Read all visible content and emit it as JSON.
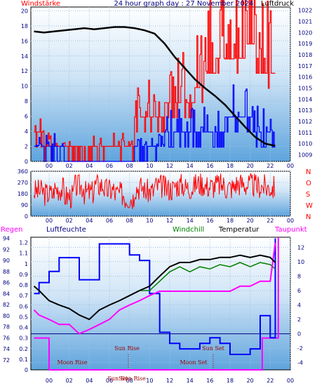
{
  "colors": {
    "panel_bg_top": "#ffffff",
    "panel_bg_bottom": "#5ea4dd",
    "wind": "#ff0000",
    "gust": "#0000ff",
    "pressure": "#000000",
    "direction": "#ff0000",
    "humidity": "#0000ff",
    "windchill": "#008000",
    "temperature": "#000000",
    "dewpoint": "#ff00ff",
    "rain": "#ff00ff",
    "tick_text_dark": "#000080",
    "label_red": "#ff0000"
  },
  "header": {
    "left": "Windstärke",
    "center": "24 hour graph day : 27 November 2024",
    "right": "Luftdruck"
  },
  "time_ticks": [
    "00",
    "02",
    "04",
    "06",
    "08",
    "10",
    "12",
    "14",
    "16",
    "18",
    "20",
    "22",
    "00"
  ],
  "chart_data": [
    {
      "type": "line",
      "title": "24 hour graph day : 27 November 2024",
      "x_ticks": [
        "00",
        "02",
        "04",
        "06",
        "08",
        "10",
        "12",
        "14",
        "16",
        "18",
        "20",
        "22",
        "00"
      ],
      "y_left_label": "Windstärke",
      "y_left_ticks": [
        0,
        2,
        4,
        6,
        8,
        10,
        12,
        14,
        16,
        18,
        20
      ],
      "y_left_range": [
        0,
        20.5
      ],
      "y_right_label": "Luftdruck",
      "y_right_ticks": [
        1009,
        1010,
        1011,
        1012,
        1013,
        1014,
        1015,
        1016,
        1017,
        1018,
        1019,
        1020,
        1021,
        1022
      ],
      "y_right_range": [
        1008.4,
        1022.3
      ],
      "grid": true,
      "series": [
        {
          "name": "Luftdruck",
          "axis": "right",
          "x": [
            -1.5,
            -0.5,
            0.5,
            1.5,
            2.5,
            3.5,
            4.5,
            5.5,
            6.5,
            7.5,
            8.5,
            9.5,
            10.5,
            11.5,
            12.5,
            13.5,
            14.5,
            15.5,
            16.5,
            17.5,
            18.5,
            19.5,
            20.5,
            21.5,
            22.5
          ],
          "y": [
            1020.1,
            1020.0,
            1020.1,
            1020.2,
            1020.3,
            1020.4,
            1020.3,
            1020.4,
            1020.5,
            1020.5,
            1020.4,
            1020.2,
            1019.9,
            1019.0,
            1017.8,
            1016.8,
            1015.8,
            1015.0,
            1014.3,
            1013.5,
            1012.5,
            1011.5,
            1010.6,
            1010.0,
            1009.8
          ]
        },
        {
          "name": "wind",
          "axis": "left",
          "x": [
            -1.5,
            -0.5,
            0.5,
            1.5,
            2.5,
            3.5,
            4.5,
            5.5,
            6.5,
            7.5,
            8.5,
            9.5,
            10.5,
            11.5,
            12.5,
            13.5,
            14.5,
            15.5,
            16.5,
            17.5,
            18.5,
            19.5,
            20.5,
            21.5,
            22.5
          ],
          "y": [
            3.9,
            2.0,
            2.0,
            2.0,
            2.0,
            2.0,
            2.0,
            2.0,
            2.0,
            2.0,
            5.9,
            5.9,
            5.9,
            7.8,
            7.8,
            7.8,
            9.8,
            11.7,
            13.7,
            15.6,
            13.7,
            15.6,
            13.7,
            11.7,
            9.8
          ]
        },
        {
          "name": "gust",
          "axis": "left",
          "x": [
            -1.5,
            -0.5,
            0.5,
            1.5,
            2.5,
            3.5,
            4.5,
            5.5,
            6.5,
            7.5,
            8.5,
            9.5,
            10.5,
            11.5,
            12.5,
            13.5,
            14.5,
            15.5,
            16.5,
            17.5,
            18.5,
            19.5,
            20.5,
            21.5,
            22.5
          ],
          "y": [
            2.0,
            2.0,
            2.0,
            0.0,
            0.0,
            0.0,
            0.0,
            0.0,
            0.0,
            0.0,
            2.0,
            2.0,
            2.0,
            3.9,
            3.9,
            3.9,
            3.9,
            3.9,
            3.9,
            5.9,
            5.9,
            5.9,
            3.9,
            3.9,
            3.9
          ]
        }
      ]
    },
    {
      "type": "line",
      "y_left_ticks": [
        0,
        90,
        180,
        270,
        360
      ],
      "y_left_range": [
        0,
        360
      ],
      "y_right_ticks": [
        "N",
        "W",
        "S",
        "O",
        "N"
      ],
      "grid": true,
      "series": [
        {
          "name": "direction",
          "x": [
            -1.5,
            -0.5,
            0.5,
            1.5,
            2.5,
            3.5,
            4.5,
            5.5,
            6.5,
            7.5,
            8.5,
            9.5,
            10.5,
            11.5,
            12.5,
            13.5,
            14.5,
            15.5,
            16.5,
            17.5,
            18.5,
            19.5,
            20.5,
            21.5,
            22.5
          ],
          "y": [
            200,
            180,
            220,
            160,
            240,
            190,
            250,
            210,
            180,
            150,
            230,
            200,
            240,
            220,
            250,
            230,
            260,
            240,
            250,
            230,
            260,
            250,
            240,
            230,
            250
          ]
        }
      ]
    },
    {
      "type": "line",
      "legend": [
        "Regen",
        "Luftfeuchte",
        "Windchill",
        "Temperatur",
        "Taupunkt"
      ],
      "y_left_ticks_rain": [
        0,
        0.1,
        0.2,
        0.3,
        0.4,
        0.5,
        0.6,
        0.7,
        0.8,
        0.9,
        1,
        1.1,
        1.2
      ],
      "y_left_ticks_humidity": [
        72,
        74,
        76,
        78,
        80,
        82,
        84,
        86,
        88,
        90,
        92,
        94
      ],
      "y_right_ticks": [
        -4,
        -2,
        0,
        2,
        4,
        6,
        8,
        10,
        12
      ],
      "y_right_range": [
        -5.0,
        13.4
      ],
      "humidity_range": [
        70.2,
        94.2
      ],
      "grid": true,
      "annotations": [
        "Moon Rise",
        "Sun Rise",
        "Sun Set",
        "Moon Set",
        "SunSet",
        "Sun Rise"
      ],
      "series": [
        {
          "name": "Luftfeuchte",
          "x": [
            -1.5,
            -1.0,
            0.0,
            1.0,
            2.0,
            3.0,
            4.0,
            5.0,
            6.0,
            7.0,
            8.0,
            9.0,
            10.0,
            11.0,
            12.0,
            13.0,
            14.0,
            15.0,
            16.0,
            17.0,
            18.0,
            19.0,
            20.0,
            21.0,
            22.0,
            22.5
          ],
          "y": [
            84,
            86,
            88,
            90.5,
            90.5,
            86.5,
            86.5,
            93.0,
            93.0,
            93.0,
            91.0,
            90.0,
            84.0,
            77.0,
            75.0,
            74.0,
            74.0,
            75.0,
            76.0,
            75.0,
            73.0,
            73.0,
            74.0,
            80.0,
            76.0,
            94.0
          ]
        },
        {
          "name": "Temperatur",
          "x": [
            -1.5,
            -1.0,
            0.0,
            1.0,
            2.0,
            3.0,
            4.0,
            5.0,
            6.0,
            7.0,
            8.0,
            9.0,
            10.0,
            11.0,
            12.0,
            13.0,
            14.0,
            15.0,
            16.0,
            17.0,
            18.0,
            19.0,
            20.0,
            21.0,
            22.0,
            22.5
          ],
          "y": [
            6.6,
            6.0,
            4.6,
            4.0,
            3.5,
            2.6,
            2.0,
            3.3,
            4.0,
            4.6,
            5.3,
            6.0,
            6.6,
            8.0,
            9.3,
            9.9,
            9.9,
            10.3,
            10.3,
            10.6,
            10.6,
            10.9,
            10.6,
            10.9,
            10.6,
            9.9
          ]
        },
        {
          "name": "Windchill",
          "x": [
            -1.5,
            -1.0,
            0.0,
            1.0,
            2.0,
            3.0,
            4.0,
            5.0,
            6.0,
            7.0,
            8.0,
            9.0,
            10.0,
            11.0,
            12.0,
            13.0,
            14.0,
            15.0,
            16.0,
            17.0,
            18.0,
            19.0,
            20.0,
            21.0,
            22.0,
            22.5
          ],
          "y": [
            6.6,
            6.0,
            4.6,
            4.0,
            3.5,
            2.6,
            2.0,
            3.3,
            4.0,
            4.6,
            5.3,
            6.0,
            6.0,
            7.3,
            8.6,
            9.3,
            8.6,
            9.3,
            9.0,
            9.6,
            9.3,
            9.9,
            9.3,
            9.9,
            9.6,
            9.0
          ]
        },
        {
          "name": "Taupunkt",
          "x": [
            -1.5,
            -1.0,
            0.0,
            1.0,
            2.0,
            3.0,
            4.0,
            5.0,
            6.0,
            7.0,
            8.0,
            9.0,
            10.0,
            11.0,
            12.0,
            13.0,
            14.0,
            15.0,
            16.0,
            17.0,
            18.0,
            19.0,
            20.0,
            21.0,
            22.0,
            22.5
          ],
          "y": [
            3.3,
            2.6,
            2.0,
            1.3,
            1.3,
            0.0,
            0.6,
            1.3,
            2.0,
            3.3,
            4.0,
            4.6,
            5.3,
            5.9,
            5.9,
            5.9,
            5.9,
            5.9,
            5.9,
            5.9,
            5.9,
            6.6,
            6.6,
            7.3,
            7.3,
            12.6
          ]
        },
        {
          "name": "Regen",
          "x": [
            -1.5,
            0.0,
            0.0,
            21.2,
            21.2,
            22.8,
            22.8
          ],
          "y": [
            0.3,
            0.3,
            0.0,
            0.0,
            0.3,
            0.3,
            1.25
          ]
        }
      ]
    }
  ]
}
